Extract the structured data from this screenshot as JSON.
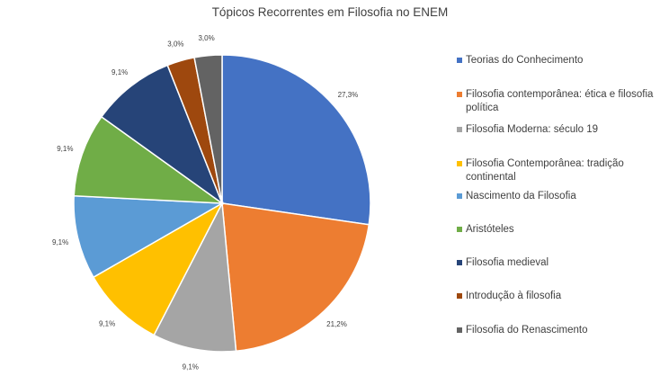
{
  "chart_data": {
    "type": "pie",
    "title": "Tópicos Recorrentes em Filosofia no ENEM",
    "categories": [
      "Teorias do Conhecimento",
      "Filosofia contemporânea: ética e filosofia política",
      "Filosofia Moderna: século 19",
      "Filosofia Contemporânea: tradição continental",
      "Nascimento da Filosofia",
      "Aristóteles",
      "Filosofia medieval",
      "Introdução à filosofia",
      "Filosofia do Renascimento"
    ],
    "values": [
      27.3,
      21.2,
      9.1,
      9.1,
      9.1,
      9.1,
      9.1,
      3.0,
      3.0
    ],
    "data_labels": [
      "27,3%",
      "21,2%",
      "9,1%",
      "9,1%",
      "9,1%",
      "9,1%",
      "9,1%",
      "3,0%",
      "3,0%"
    ],
    "colors": [
      "#4472C4",
      "#ED7D31",
      "#A5A5A5",
      "#FFC000",
      "#5B9BD5",
      "#70AD47",
      "#264478",
      "#9E480E",
      "#636363"
    ],
    "legend_position": "right",
    "start_angle_deg": 0,
    "direction": "clockwise"
  }
}
